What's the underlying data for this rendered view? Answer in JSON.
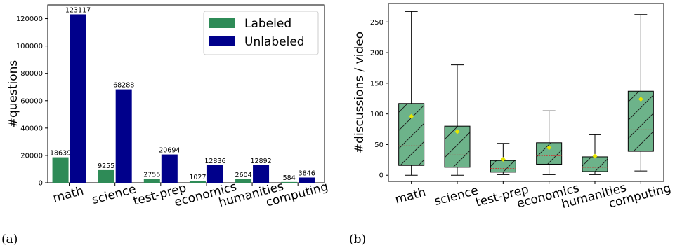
{
  "chart_data": [
    {
      "panel_label": "(a)",
      "type": "bar",
      "ylabel": "#questions",
      "ylim": [
        0,
        130000
      ],
      "yticks": [
        0,
        20000,
        40000,
        60000,
        80000,
        100000,
        120000
      ],
      "categories": [
        "math",
        "science",
        "test-prep",
        "economics",
        "humanities",
        "computing"
      ],
      "series": [
        {
          "name": "Labeled",
          "color": "#2e8b57",
          "values": [
            18639,
            9255,
            2755,
            1027,
            2604,
            584
          ]
        },
        {
          "name": "Unlabeled",
          "color": "#00008b",
          "values": [
            123117,
            68288,
            20694,
            12836,
            12892,
            3846
          ]
        }
      ],
      "legend_position": "top-right"
    },
    {
      "panel_label": "(b)",
      "type": "box",
      "ylabel": "#discussions / video",
      "ylim": [
        -10,
        280
      ],
      "yticks": [
        0,
        50,
        100,
        150,
        200,
        250
      ],
      "categories": [
        "math",
        "science",
        "test-prep",
        "economics",
        "humanities",
        "computing"
      ],
      "box_color": "#6db38a",
      "median_color": "#d62728",
      "mean_color": "#e6e600",
      "boxes": [
        {
          "min": 0,
          "q1": 16,
          "median": 48,
          "q3": 117,
          "max": 267,
          "mean": 96
        },
        {
          "min": 0,
          "q1": 13,
          "median": 33,
          "q3": 80,
          "max": 180,
          "mean": 71
        },
        {
          "min": 1,
          "q1": 5,
          "median": 11,
          "q3": 24,
          "max": 52,
          "mean": 26
        },
        {
          "min": 1,
          "q1": 18,
          "median": 32,
          "q3": 53,
          "max": 105,
          "mean": 45
        },
        {
          "min": 1,
          "q1": 6,
          "median": 13,
          "q3": 30,
          "max": 66,
          "mean": 31
        },
        {
          "min": 7,
          "q1": 39,
          "median": 74,
          "q3": 137,
          "max": 262,
          "mean": 124
        }
      ]
    }
  ]
}
